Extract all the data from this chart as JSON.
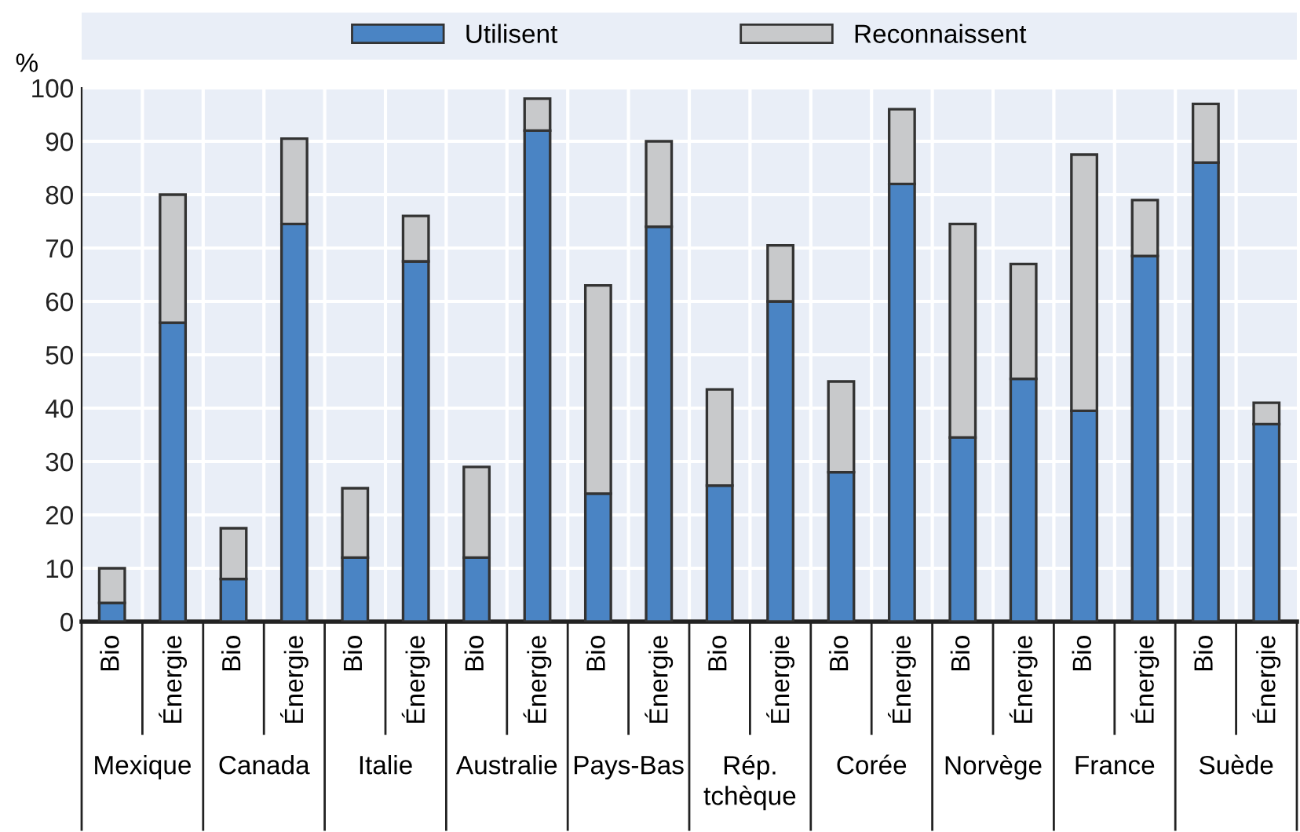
{
  "chart_data": {
    "type": "bar",
    "stacked": true,
    "ylabel": "%",
    "categories": [
      "Bio",
      "Énergie",
      "Bio",
      "Énergie",
      "Bio",
      "Énergie",
      "Bio",
      "Énergie",
      "Bio",
      "Énergie",
      "Bio",
      "Énergie",
      "Bio",
      "Énergie",
      "Bio",
      "Énergie",
      "Bio",
      "Énergie",
      "Bio",
      "Énergie"
    ],
    "series": [
      {
        "name": "Utilisent",
        "color": "#4a84c4",
        "values": [
          3.5,
          56,
          8,
          74.5,
          12,
          67.5,
          12,
          92,
          24,
          74,
          25.5,
          60,
          28,
          82,
          34.5,
          45.5,
          39.5,
          68.5,
          86,
          37
        ]
      },
      {
        "name": "Reconnaissent",
        "color": "#c8c9cb",
        "values": [
          6.5,
          24,
          9.5,
          16,
          13,
          8.5,
          17,
          6,
          39,
          16,
          18,
          10.5,
          17,
          14,
          40,
          21.5,
          48,
          10.5,
          11,
          4
        ]
      }
    ],
    "annotations": [
      "Mexique",
      "Canada",
      "Italie",
      "Australie",
      "Pays-Bas",
      "Rép.\ntchèque",
      "Corée",
      "Norvège",
      "France",
      "Suède"
    ],
    "ylim": [
      0,
      100
    ],
    "yticks": [
      0,
      10,
      20,
      30,
      40,
      50,
      60,
      70,
      80,
      90,
      100
    ],
    "grid": true,
    "legend": "top"
  }
}
